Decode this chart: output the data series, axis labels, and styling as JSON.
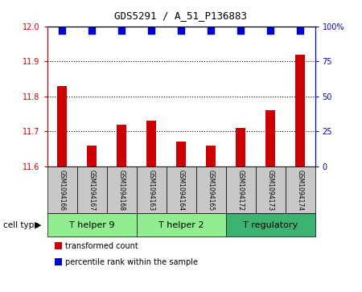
{
  "title": "GDS5291 / A_51_P136883",
  "samples": [
    "GSM1094166",
    "GSM1094167",
    "GSM1094168",
    "GSM1094163",
    "GSM1094164",
    "GSM1094165",
    "GSM1094172",
    "GSM1094173",
    "GSM1094174"
  ],
  "transformed_counts": [
    11.83,
    11.66,
    11.72,
    11.73,
    11.67,
    11.66,
    11.71,
    11.76,
    11.92
  ],
  "percentile_ranks": [
    97,
    97,
    97,
    97,
    97,
    97,
    97,
    97,
    97
  ],
  "ylim_left": [
    11.6,
    12.0
  ],
  "ylim_right": [
    0,
    100
  ],
  "yticks_left": [
    11.6,
    11.7,
    11.8,
    11.9,
    12.0
  ],
  "yticks_right": [
    0,
    25,
    50,
    75,
    100
  ],
  "ytick_labels_right": [
    "0",
    "25",
    "50",
    "75",
    "100%"
  ],
  "cell_groups": [
    {
      "label": "T helper 9",
      "start": 0,
      "end": 2,
      "color": "#90EE90"
    },
    {
      "label": "T helper 2",
      "start": 3,
      "end": 5,
      "color": "#90EE90"
    },
    {
      "label": "T regulatory",
      "start": 6,
      "end": 8,
      "color": "#3CB371"
    }
  ],
  "bar_color": "#CC0000",
  "dot_color": "#0000CC",
  "left_axis_color": "#CC0000",
  "right_axis_color": "#0000CC",
  "sample_box_color": "#C8C8C8",
  "bar_width": 0.35,
  "dot_size": 35,
  "legend_labels": [
    "transformed count",
    "percentile rank within the sample"
  ],
  "title_fontsize": 9,
  "tick_fontsize": 7,
  "sample_fontsize": 5.5,
  "celltype_fontsize": 8,
  "legend_fontsize": 7
}
